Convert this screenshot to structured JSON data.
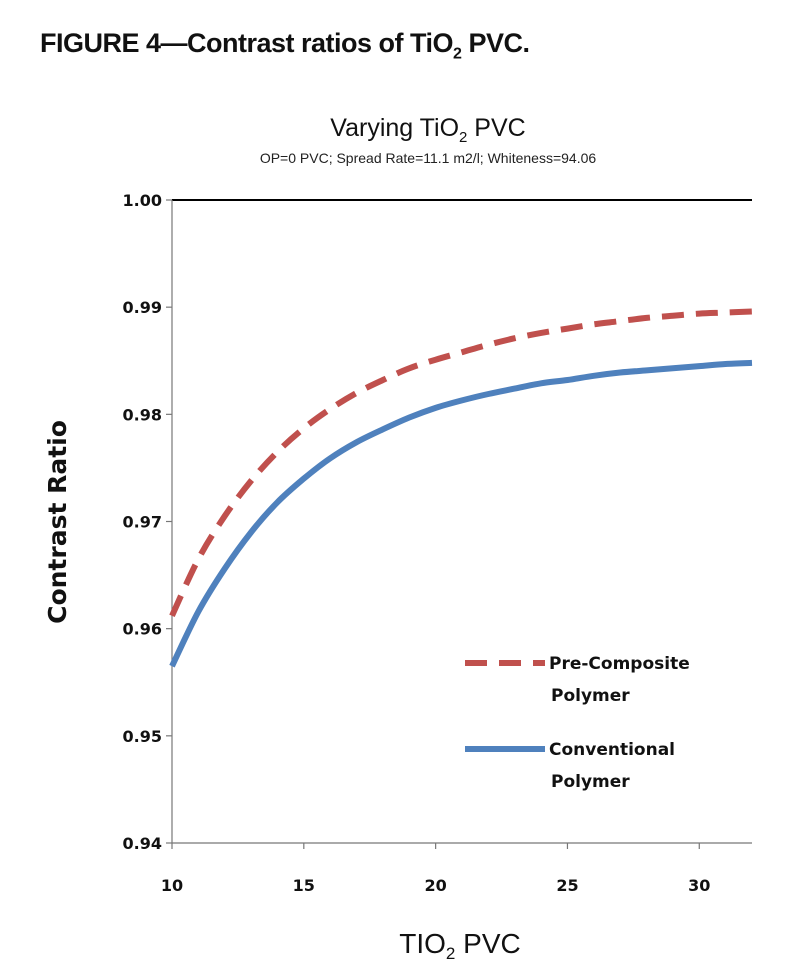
{
  "caption": {
    "text": "FIGURE 4—Contrast ratios of TiO",
    "sub": "2",
    "suffix": " PVC."
  },
  "chart_data": {
    "type": "line",
    "title": "Varying TiO",
    "title_sub": "2",
    "title_suffix": " PVC",
    "subtitle": "OP=0 PVC; Spread Rate=11.1 m2/l; Whiteness=94.06",
    "xlabel": "TIO",
    "xlabel_sub": "2",
    "xlabel_suffix": " PVC",
    "ylabel": "Contrast Ratio",
    "xlim": [
      10,
      32
    ],
    "ylim": [
      0.94,
      1.0
    ],
    "xticks": [
      10,
      15,
      20,
      25,
      30
    ],
    "xtick_labels": [
      "10",
      "15",
      "20",
      "25",
      "30"
    ],
    "yticks": [
      0.94,
      0.95,
      0.96,
      0.97,
      0.98,
      0.99,
      1.0
    ],
    "ytick_labels": [
      "0.94",
      "0.95",
      "0.96",
      "0.97",
      "0.98",
      "0.99",
      "1.00"
    ],
    "grid": false,
    "legend_position": "bottom-right",
    "series": [
      {
        "name_lines": [
          "Pre-Composite",
          "Polymer"
        ],
        "color": "#c0504d",
        "style": "dashed",
        "x": [
          10,
          11,
          12,
          13,
          14,
          15,
          16,
          17,
          18,
          19,
          20,
          21,
          22,
          23,
          24,
          25,
          26,
          27,
          28,
          29,
          30,
          31,
          32
        ],
        "y": [
          0.9612,
          0.9665,
          0.9705,
          0.9738,
          0.9765,
          0.9787,
          0.9805,
          0.982,
          0.9832,
          0.9843,
          0.9851,
          0.9858,
          0.9865,
          0.9871,
          0.9876,
          0.988,
          0.9884,
          0.9887,
          0.989,
          0.9892,
          0.9894,
          0.9895,
          0.9896
        ]
      },
      {
        "name_lines": [
          "Conventional",
          "Polymer"
        ],
        "color": "#4f81bd",
        "style": "solid",
        "x": [
          10,
          11,
          12,
          13,
          14,
          15,
          16,
          17,
          18,
          19,
          20,
          21,
          22,
          23,
          24,
          25,
          26,
          27,
          28,
          29,
          30,
          31,
          32
        ],
        "y": [
          0.9565,
          0.9616,
          0.9656,
          0.969,
          0.9718,
          0.974,
          0.9759,
          0.9774,
          0.9786,
          0.9797,
          0.9806,
          0.9813,
          0.9819,
          0.9824,
          0.9829,
          0.9832,
          0.9836,
          0.9839,
          0.9841,
          0.9843,
          0.9845,
          0.9847,
          0.9848
        ]
      }
    ]
  }
}
